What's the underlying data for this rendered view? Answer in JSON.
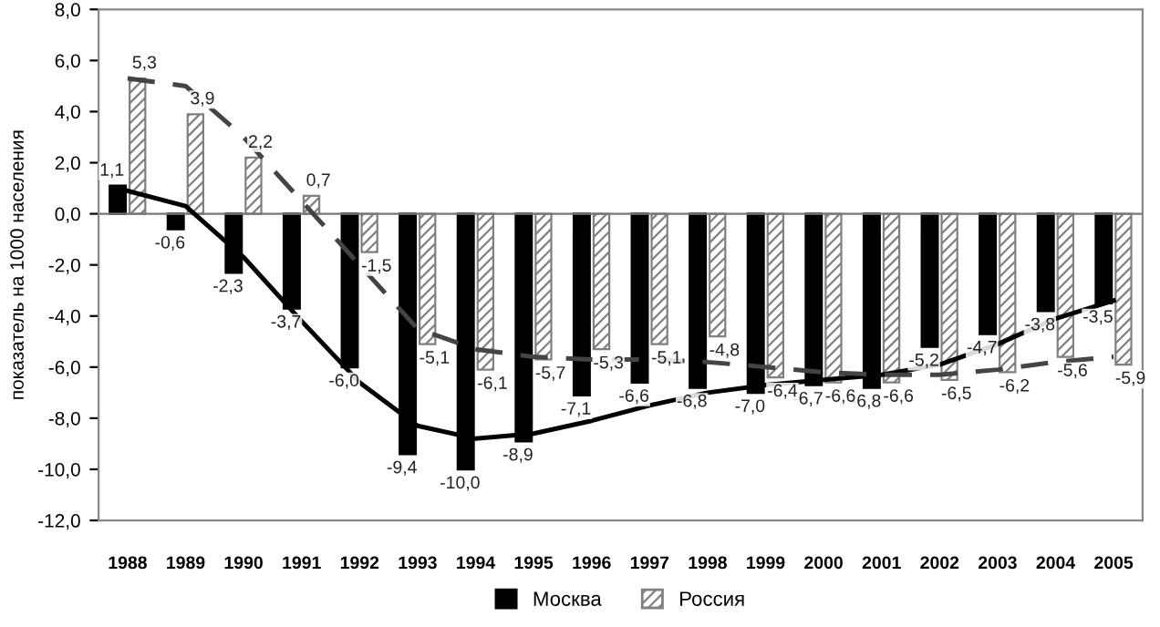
{
  "chart_data": {
    "type": "bar",
    "ylabel": "показатель на 1000 населения",
    "categories": [
      "1988",
      "1989",
      "1990",
      "1991",
      "1992",
      "1993",
      "1994",
      "1995",
      "1996",
      "1997",
      "1998",
      "1999",
      "2000",
      "2001",
      "2002",
      "2003",
      "2004",
      "2005"
    ],
    "series": [
      {
        "name": "Москва",
        "color": "#000000",
        "values": [
          1.1,
          -0.6,
          -2.3,
          -3.7,
          -6.0,
          -9.4,
          -10.0,
          -8.9,
          -7.1,
          -6.6,
          -6.8,
          -7.0,
          -6.7,
          -6.8,
          -5.2,
          -4.7,
          -3.8,
          -3.5
        ],
        "value_labels": [
          "1,1",
          "-0,6",
          "-2,3",
          "-3,7",
          "-6,0",
          "-9,4",
          "-10,0",
          "-8,9",
          "-7,1",
          "-6,6",
          "-6,8",
          "-7,0",
          "-6,7",
          "-6,8",
          "-5,2",
          "-4,7",
          "-3,8",
          "-3,5"
        ]
      },
      {
        "name": "Россия",
        "color": "#808080",
        "values": [
          5.3,
          3.9,
          2.2,
          0.7,
          -1.5,
          -5.1,
          -6.1,
          -5.7,
          -5.3,
          -5.1,
          -4.8,
          -6.4,
          -6.6,
          -6.6,
          -6.5,
          -6.2,
          -5.6,
          -5.9
        ],
        "value_labels": [
          "5,3",
          "3,9",
          "2,2",
          "0,7",
          "-1,5",
          "-5,1",
          "-6,1",
          "-5,7",
          "-5,3",
          "-5,1",
          "-4,8",
          "-6,4",
          "-6,6",
          "-6,6",
          "-6,5",
          "-6,2",
          "-5,6",
          "-5,9"
        ]
      },
      {
        "type": "line",
        "line_style": "solid",
        "color": "#000000",
        "values": [
          0.9,
          0.3,
          -1.7,
          -4.2,
          -6.6,
          -8.3,
          -8.8,
          -8.6,
          -8.1,
          -7.5,
          -7.0,
          -6.7,
          -6.5,
          -6.3,
          -5.9,
          -5.1,
          -4.1,
          -3.4
        ]
      },
      {
        "type": "line",
        "line_style": "dashed",
        "color": "#444444",
        "values": [
          5.3,
          5.0,
          3.0,
          0.5,
          -2.0,
          -4.5,
          -5.3,
          -5.6,
          -5.7,
          -5.7,
          -5.8,
          -6.0,
          -6.2,
          -6.3,
          -6.3,
          -6.1,
          -5.8,
          -5.6
        ]
      }
    ],
    "ylim": [
      -12,
      8
    ],
    "yticks": [
      {
        "value": -12,
        "label": "-12,0"
      },
      {
        "value": -10,
        "label": "-10,0"
      },
      {
        "value": -8,
        "label": "-8,0"
      },
      {
        "value": -6,
        "label": "-6,0"
      },
      {
        "value": -4,
        "label": "-4,0"
      },
      {
        "value": -2,
        "label": "-2,0"
      },
      {
        "value": 0,
        "label": "0,0"
      },
      {
        "value": 2,
        "label": "2,0"
      },
      {
        "value": 4,
        "label": "4,0"
      },
      {
        "value": 6,
        "label": "6,0"
      },
      {
        "value": 8,
        "label": "8,0"
      }
    ],
    "legend": "bottom"
  }
}
